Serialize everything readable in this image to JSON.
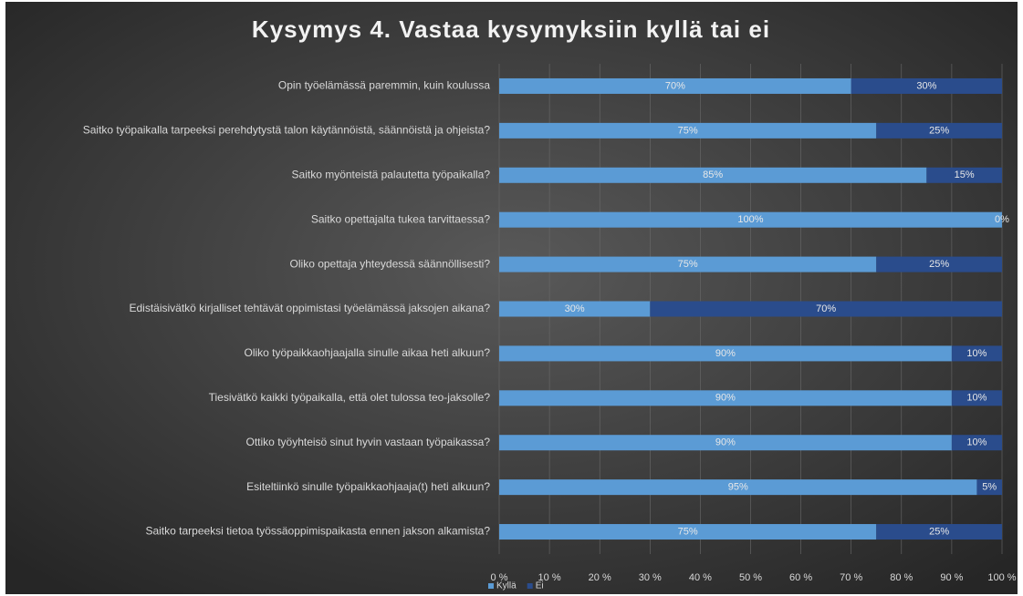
{
  "chart_data": {
    "type": "stacked_barh",
    "title": "Kysymys 4. Vastaa kysymyksiin kyllä tai ei",
    "categories": [
      "Opin työelämässä paremmin, kuin koulussa",
      "Saitko työpaikalla tarpeeksi perehdytystä talon käytännöistä, säännöistä ja ohjeista?",
      "Saitko myönteistä palautetta työpaikalla?",
      "Saitko opettajalta tukea tarvittaessa?",
      "Oliko opettaja yhteydessä säännöllisesti?",
      "Edistäisivätkö kirjalliset tehtävät oppimistasi työelämässä jaksojen aikana?",
      "Oliko työpaikkaohjaajalla sinulle aikaa heti alkuun?",
      "Tiesivätkö kaikki työpaikalla, että olet tulossa teo-jaksolle?",
      "Ottiko työyhteisö sinut hyvin vastaan työpaikassa?",
      "Esiteltiinkö sinulle työpaikkaohjaaja(t) heti alkuun?",
      "Saitko tarpeeksi tietoa työssäoppimispaikasta ennen jakson alkamista?"
    ],
    "series": [
      {
        "name": "Kyllä",
        "color": "#5b9bd5",
        "values": [
          70,
          75,
          85,
          100,
          75,
          30,
          90,
          90,
          90,
          95,
          75
        ],
        "value_labels": [
          "70%",
          "75%",
          "85%",
          "100%",
          "75%",
          "30%",
          "90%",
          "90%",
          "90%",
          "95%",
          "75%"
        ]
      },
      {
        "name": "Ei",
        "color": "#2a4c8c",
        "values": [
          30,
          25,
          15,
          0,
          25,
          70,
          10,
          10,
          10,
          5,
          25
        ],
        "value_labels": [
          "30%",
          "25%",
          "15%",
          "0%",
          "25%",
          "70%",
          "10%",
          "10%",
          "10%",
          "5%",
          "25%"
        ]
      }
    ],
    "xlim": [
      0,
      100
    ],
    "xticks": [
      {
        "value": 0,
        "label": "0 %"
      },
      {
        "value": 10,
        "label": "10 %"
      },
      {
        "value": 20,
        "label": "20 %"
      },
      {
        "value": 30,
        "label": "30 %"
      },
      {
        "value": 40,
        "label": "40 %"
      },
      {
        "value": 50,
        "label": "50 %"
      },
      {
        "value": 60,
        "label": "60 %"
      },
      {
        "value": 70,
        "label": "70 %"
      },
      {
        "value": 80,
        "label": "80 %"
      },
      {
        "value": 90,
        "label": "90 %"
      },
      {
        "value": 100,
        "label": "100 %"
      }
    ],
    "grid": true,
    "legend": "bottom"
  }
}
